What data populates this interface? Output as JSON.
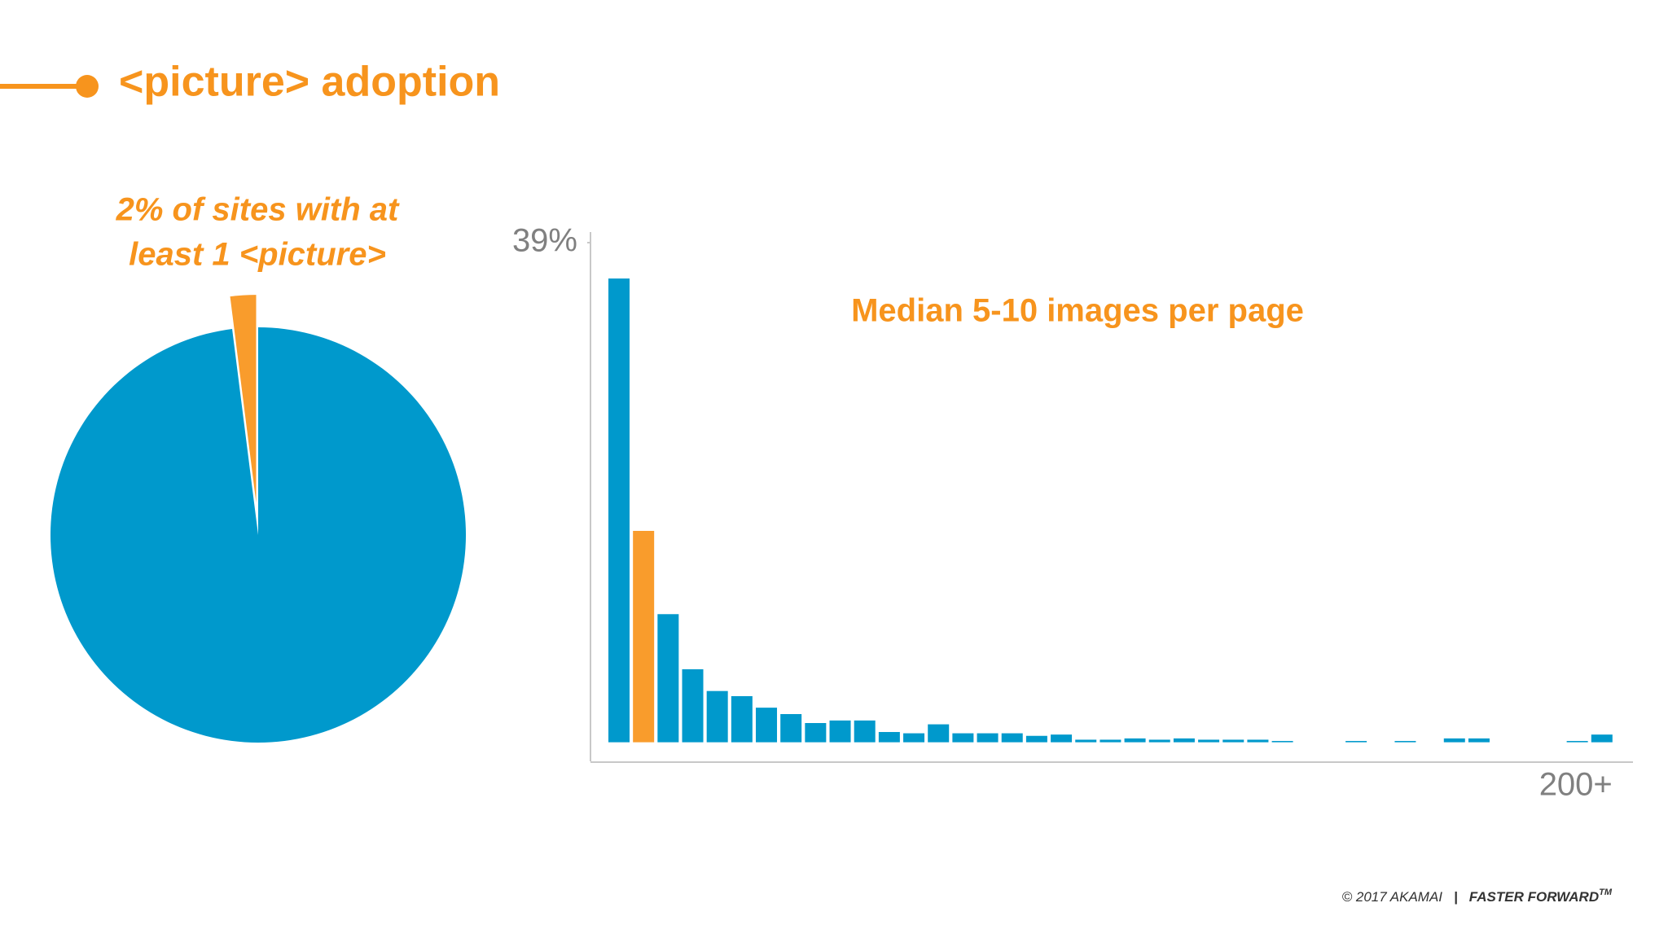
{
  "header": {
    "title": "<picture> adoption"
  },
  "chart_data": [
    {
      "type": "pie",
      "annotation": [
        "2% of sites with at",
        "least 1 <picture>"
      ],
      "values": [
        2,
        98
      ],
      "colors": [
        "#f99c2c",
        "#0099cc"
      ]
    },
    {
      "type": "bar",
      "annotation": "Median 5-10 images per page",
      "categories": [
        null,
        null,
        null,
        null,
        null,
        null,
        null,
        null,
        null,
        null,
        null,
        null,
        null,
        null,
        null,
        null,
        null,
        null,
        null,
        null,
        null,
        null,
        null,
        null,
        null,
        null,
        null,
        null,
        null,
        null,
        null,
        null,
        null,
        null,
        null,
        null,
        null,
        null,
        null,
        null,
        "200+"
      ],
      "values": [
        36.2,
        16.5,
        10.0,
        5.7,
        4.0,
        3.6,
        2.7,
        2.2,
        1.5,
        1.7,
        1.7,
        0.8,
        0.7,
        1.4,
        0.7,
        0.7,
        0.7,
        0.5,
        0.6,
        0.2,
        0.2,
        0.3,
        0.2,
        0.3,
        0.2,
        0.2,
        0.2,
        0.1,
        0,
        0,
        0.1,
        0,
        0.1,
        0,
        0.3,
        0.3,
        0,
        0,
        0,
        0.1,
        0.6
      ],
      "colors": [
        "#0099cc",
        "#f99c2c",
        "#0099cc",
        "#0099cc",
        "#0099cc",
        "#0099cc",
        "#0099cc",
        "#0099cc",
        "#0099cc",
        "#0099cc",
        "#0099cc",
        "#0099cc",
        "#0099cc",
        "#0099cc",
        "#0099cc",
        "#0099cc",
        "#0099cc",
        "#0099cc",
        "#0099cc",
        "#0099cc",
        "#0099cc",
        "#0099cc",
        "#0099cc",
        "#0099cc",
        "#0099cc",
        "#0099cc",
        "#0099cc",
        "#0099cc",
        "#0099cc",
        "#0099cc",
        "#0099cc",
        "#0099cc",
        "#0099cc",
        "#0099cc",
        "#0099cc",
        "#0099cc",
        "#0099cc",
        "#0099cc",
        "#0099cc",
        "#0099cc",
        "#0099cc"
      ],
      "ylim": [
        0,
        39
      ],
      "yticks": [
        {
          "value": 39,
          "label": "39%"
        }
      ]
    }
  ],
  "footer": {
    "copyright": "© 2017 AKAMAI",
    "separator": "|",
    "brand": "FASTER FORWARD",
    "trademark": "TM"
  }
}
